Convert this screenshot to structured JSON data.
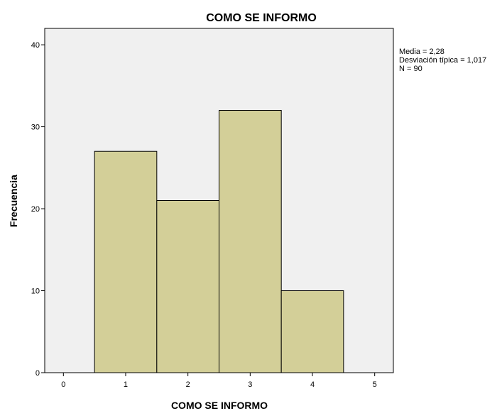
{
  "chart_data": {
    "type": "bar",
    "title": "COMO SE INFORMO",
    "xlabel": "COMO SE INFORMO",
    "ylabel": "Frecuencia",
    "categories": [
      "1",
      "2",
      "3",
      "4"
    ],
    "x": [
      1,
      2,
      3,
      4
    ],
    "values": [
      27,
      21,
      32,
      10
    ],
    "xlim": [
      -0.3,
      5.3
    ],
    "ylim": [
      0,
      42
    ],
    "xticks": [
      "0",
      "1",
      "2",
      "3",
      "4",
      "5"
    ],
    "yticks": [
      "0",
      "10",
      "20",
      "30",
      "40"
    ],
    "bar_color": "#d3cf98",
    "plot_background": "#f0f0f0",
    "grid": false,
    "stats": [
      "Media = 2,28",
      "Desviación típica = 1,017",
      "N = 90"
    ]
  }
}
